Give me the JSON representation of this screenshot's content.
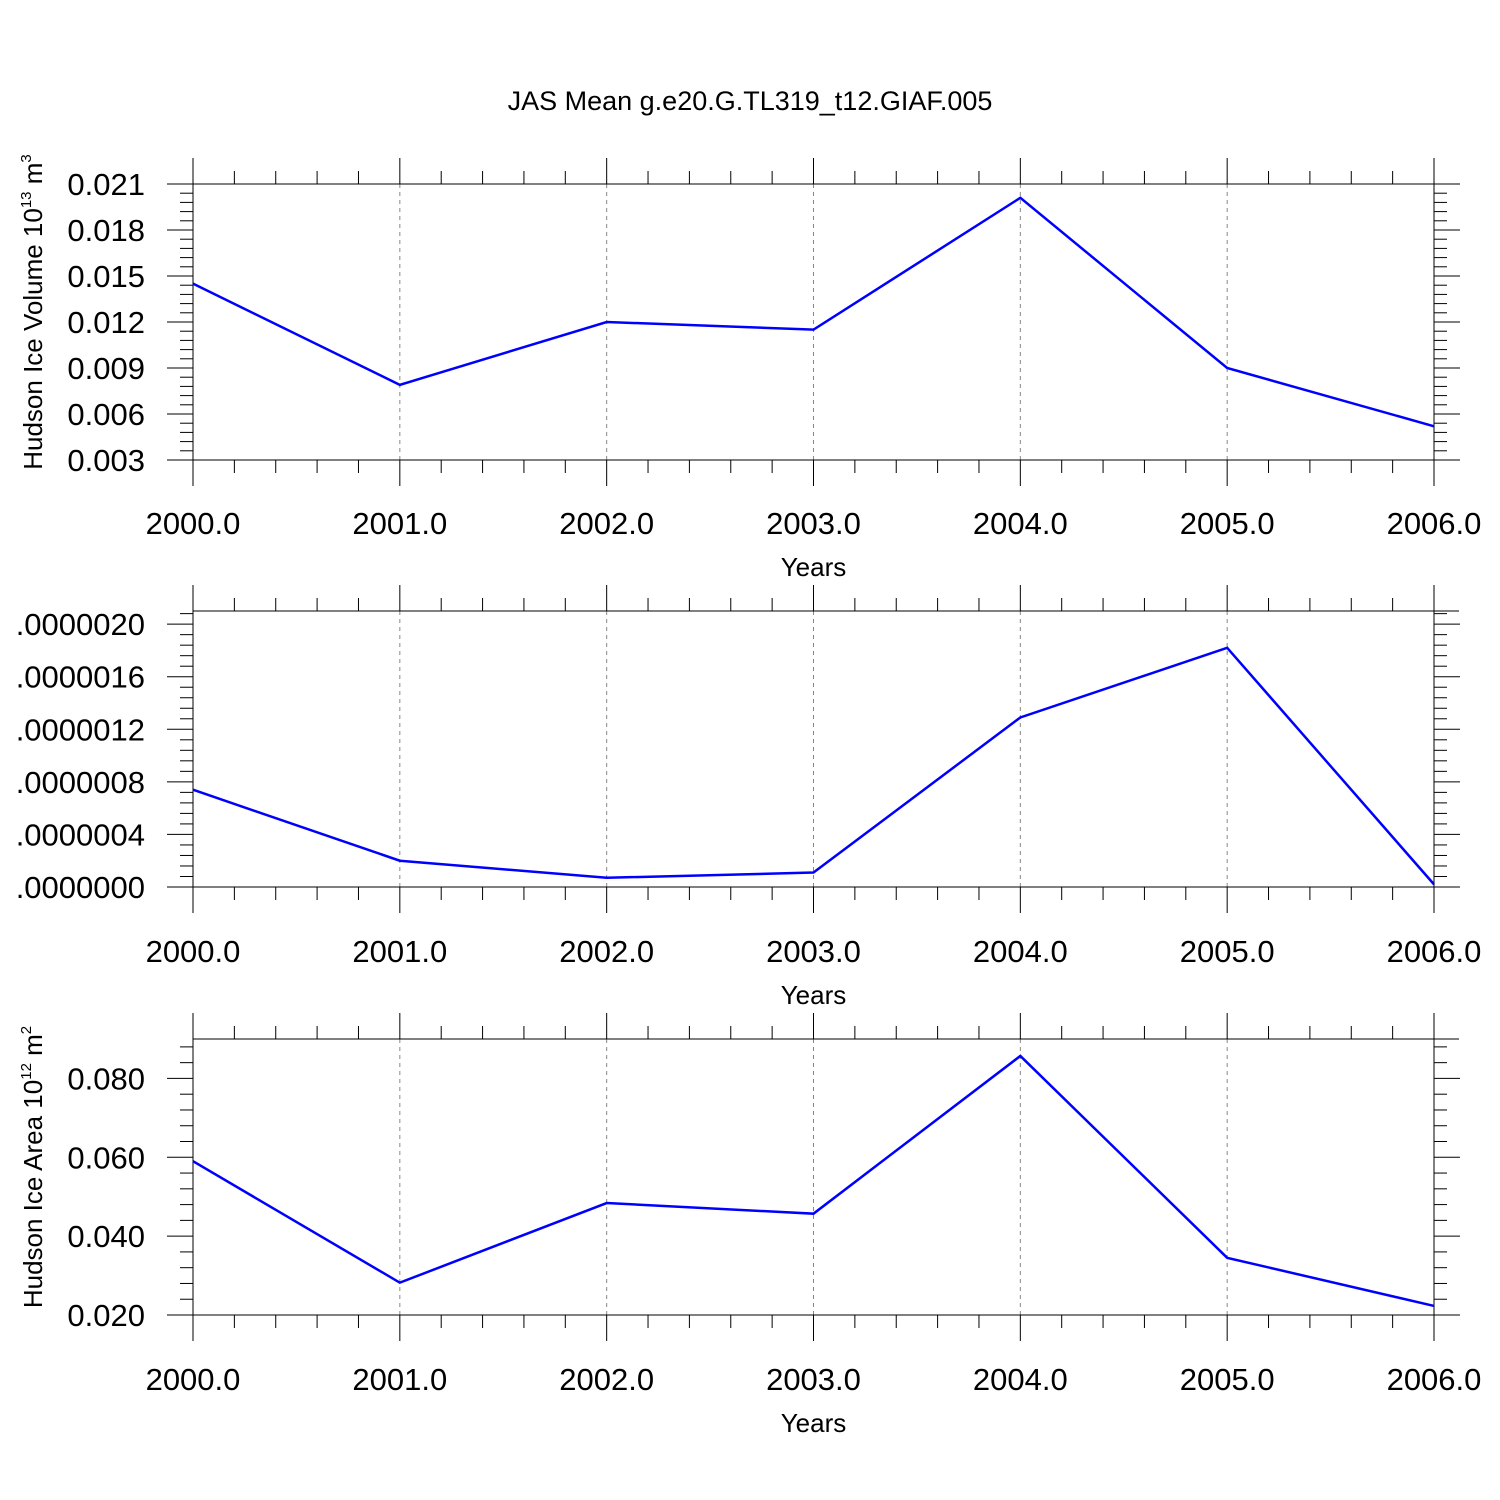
{
  "title": "JAS Mean g.e20.G.TL319_t12.GIAF.005",
  "chart_data": [
    {
      "type": "line",
      "title": "",
      "xlabel": "Years",
      "ylabel": "Hudson Ice Volume 10",
      "ylabel_sup": "13",
      "ylabel_unit": " m",
      "ylabel_unit_sup": "3",
      "xlim": [
        2000,
        2006
      ],
      "ylim": [
        0.003,
        0.021
      ],
      "xticks": [
        2000,
        2001,
        2002,
        2003,
        2004,
        2005,
        2006
      ],
      "xtick_labels": [
        "2000.0",
        "2001.0",
        "2002.0",
        "2003.0",
        "2004.0",
        "2005.0",
        "2006.0"
      ],
      "yticks": [
        0.003,
        0.006,
        0.009,
        0.012,
        0.015,
        0.018,
        0.021
      ],
      "ytick_labels": [
        "0.003",
        "0.006",
        "0.009",
        "0.012",
        "0.015",
        "0.018",
        "0.021"
      ],
      "grid": "vertical dashed at major x ticks",
      "x": [
        2000,
        2001,
        2002,
        2003,
        2004,
        2005,
        2006
      ],
      "series": [
        {
          "values": [
            0.0145,
            0.0079,
            0.012,
            0.0115,
            0.0201,
            0.009,
            0.0052
          ],
          "color": "#0000ff"
        }
      ]
    },
    {
      "type": "line",
      "title": "",
      "xlabel": "Years",
      "ylabel": "",
      "xlim": [
        2000,
        2006
      ],
      "ylim": [
        0.0,
        2.1e-06
      ],
      "xticks": [
        2000,
        2001,
        2002,
        2003,
        2004,
        2005,
        2006
      ],
      "xtick_labels": [
        "2000.0",
        "2001.0",
        "2002.0",
        "2003.0",
        "2004.0",
        "2005.0",
        "2006.0"
      ],
      "yticks": [
        0.0,
        4e-07,
        8e-07,
        1.2e-06,
        1.6e-06,
        2e-06
      ],
      "ytick_labels": [
        ".0000000",
        ".0000004",
        ".0000008",
        ".0000012",
        ".0000016",
        ".0000020"
      ],
      "grid": "vertical dashed at major x ticks",
      "x": [
        2000,
        2001,
        2002,
        2003,
        2004,
        2005,
        2006
      ],
      "series": [
        {
          "values": [
            7.4e-07,
            2e-07,
            7e-08,
            1.1e-07,
            1.29e-06,
            1.82e-06,
            2e-08
          ],
          "color": "#0000ff"
        }
      ]
    },
    {
      "type": "line",
      "title": "",
      "xlabel": "Years",
      "ylabel": "Hudson Ice Area 10",
      "ylabel_sup": "12",
      "ylabel_unit": " m",
      "ylabel_unit_sup": "2",
      "xlim": [
        2000,
        2006
      ],
      "ylim": [
        0.02,
        0.09
      ],
      "xticks": [
        2000,
        2001,
        2002,
        2003,
        2004,
        2005,
        2006
      ],
      "xtick_labels": [
        "2000.0",
        "2001.0",
        "2002.0",
        "2003.0",
        "2004.0",
        "2005.0",
        "2006.0"
      ],
      "yticks": [
        0.02,
        0.04,
        0.06,
        0.08
      ],
      "ytick_labels": [
        "0.020",
        "0.040",
        "0.060",
        "0.080"
      ],
      "grid": "vertical dashed at major x ticks",
      "x": [
        2000,
        2001,
        2002,
        2003,
        2004,
        2005,
        2006
      ],
      "series": [
        {
          "values": [
            0.059,
            0.0282,
            0.0484,
            0.0457,
            0.0857,
            0.0345,
            0.0223
          ],
          "color": "#0000ff"
        }
      ]
    }
  ]
}
